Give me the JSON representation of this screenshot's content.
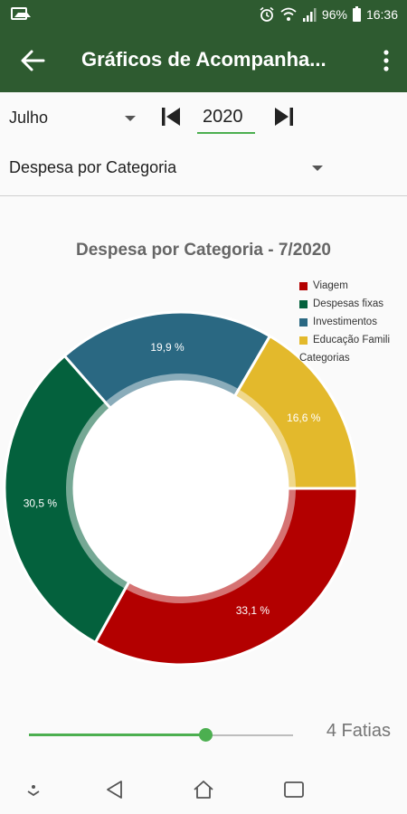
{
  "status_bar": {
    "battery": "96%",
    "time": "16:36"
  },
  "app_bar": {
    "title": "Gráficos de Acompanha..."
  },
  "controls": {
    "month": "Julho",
    "year": "2020",
    "chart_type": "Despesa por Categoria"
  },
  "chart_data": {
    "type": "pie",
    "donut": true,
    "title": "Despesa por Categoria - 7/2020",
    "legend_position": "top-right",
    "legend_caption": "Categorias",
    "slices": [
      {
        "name": "Viagem",
        "value": 33.1,
        "label": "33,1 %",
        "color": "#b30000"
      },
      {
        "name": "Despesas fixas",
        "value": 30.5,
        "label": "30,5 %",
        "color": "#04613d"
      },
      {
        "name": "Investimentos",
        "value": 19.9,
        "label": "19,9 %",
        "color": "#2a6882"
      },
      {
        "name": "Educação Famili",
        "value": 16.6,
        "label": "16,6 %",
        "color": "#e3b92c"
      }
    ]
  },
  "slider": {
    "value": 4,
    "min": 0,
    "max": 6,
    "label": "4 Fatias"
  },
  "colors": {
    "primary": "#2e5b30",
    "accent": "#4caf50"
  },
  "nav": {
    "buttons": [
      "expand-icon",
      "back-triangle-icon",
      "home-icon",
      "recents-icon"
    ]
  }
}
